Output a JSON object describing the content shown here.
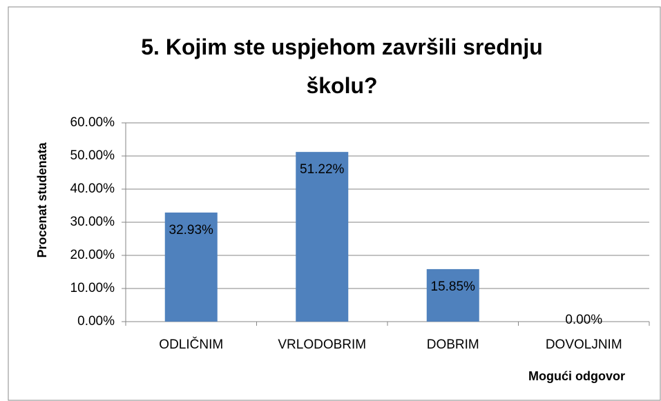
{
  "chart_data": {
    "type": "bar",
    "title": "5. Kojim ste uspjehom završili srednju školu?",
    "x_label": "Mogući odgovor",
    "y_label": "Procenat studenata",
    "categories": [
      "ODLIČNIM",
      "VRLODOBRIM",
      "DOBRIM",
      "DOVOLJNIM"
    ],
    "values": [
      32.93,
      51.22,
      15.85,
      0
    ],
    "value_labels": [
      "32.93%",
      "51.22%",
      "15.85%",
      "0.00%"
    ],
    "color": "#4f81bd",
    "ylim": [
      0,
      60
    ],
    "yticks": [
      {
        "value": 0,
        "label": "0.00%"
      },
      {
        "value": 10,
        "label": "10.00%"
      },
      {
        "value": 20,
        "label": "20.00%"
      },
      {
        "value": 30,
        "label": "30.00%"
      },
      {
        "value": 40,
        "label": "40.00%"
      },
      {
        "value": 50,
        "label": "50.00%"
      },
      {
        "value": 60,
        "label": "60.00%"
      }
    ],
    "grid": true
  }
}
